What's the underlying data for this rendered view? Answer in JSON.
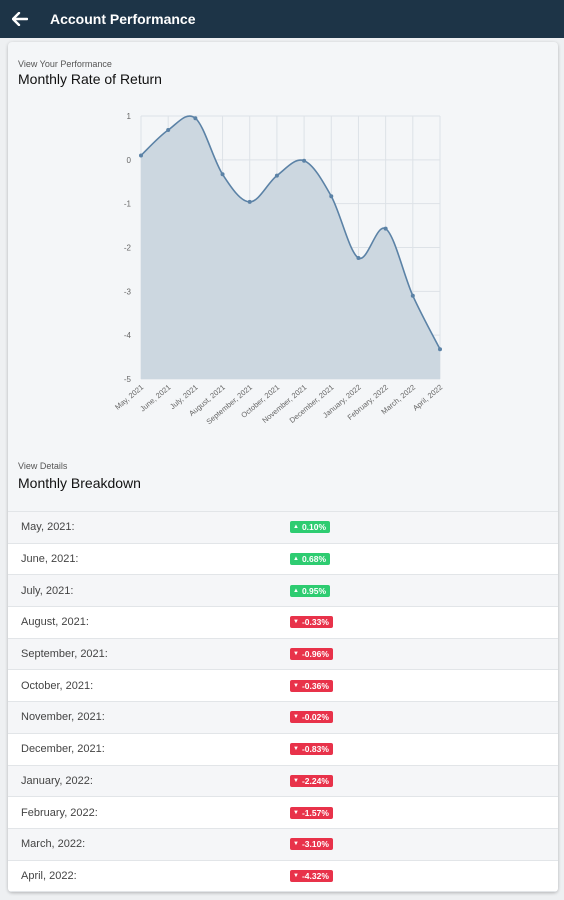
{
  "header": {
    "title": "Account Performance",
    "back_icon": "arrow-left-icon"
  },
  "performance": {
    "small_label": "View Your Performance",
    "title": "Monthly Rate of Return"
  },
  "chart_data": {
    "type": "area",
    "title": "Monthly Rate of Return",
    "xlabel": "",
    "ylabel": "",
    "categories": [
      "May, 2021",
      "June, 2021",
      "July, 2021",
      "August, 2021",
      "September, 2021",
      "October, 2021",
      "November, 2021",
      "December, 2021",
      "January, 2022",
      "February, 2022",
      "March, 2022",
      "April, 2022"
    ],
    "values": [
      0.1,
      0.68,
      0.95,
      -0.33,
      -0.96,
      -0.36,
      -0.02,
      -0.83,
      -2.24,
      -1.57,
      -3.1,
      -4.32
    ],
    "yticks": [
      "1",
      "0",
      "-1",
      "-2",
      "-3",
      "-4",
      "-5"
    ],
    "ylim": [
      -5,
      1
    ],
    "grid": true,
    "line_color": "#5b82a6",
    "fill_color": "#ccd7e0"
  },
  "details": {
    "small_label": "View Details",
    "title": "Monthly Breakdown"
  },
  "breakdown": [
    {
      "month": "May, 2021:",
      "value": "0.10%",
      "direction": "up"
    },
    {
      "month": "June, 2021:",
      "value": "0.68%",
      "direction": "up"
    },
    {
      "month": "July, 2021:",
      "value": "0.95%",
      "direction": "up"
    },
    {
      "month": "August, 2021:",
      "value": "-0.33%",
      "direction": "down"
    },
    {
      "month": "September, 2021:",
      "value": "-0.96%",
      "direction": "down"
    },
    {
      "month": "October, 2021:",
      "value": "-0.36%",
      "direction": "down"
    },
    {
      "month": "November, 2021:",
      "value": "-0.02%",
      "direction": "down"
    },
    {
      "month": "December, 2021:",
      "value": "-0.83%",
      "direction": "down"
    },
    {
      "month": "January, 2022:",
      "value": "-2.24%",
      "direction": "down"
    },
    {
      "month": "February, 2022:",
      "value": "-1.57%",
      "direction": "down"
    },
    {
      "month": "March, 2022:",
      "value": "-3.10%",
      "direction": "down"
    },
    {
      "month": "April, 2022:",
      "value": "-4.32%",
      "direction": "down"
    }
  ],
  "colors": {
    "header_bg": "#1d3447",
    "up": "#2ecc71",
    "down": "#e8324a"
  }
}
